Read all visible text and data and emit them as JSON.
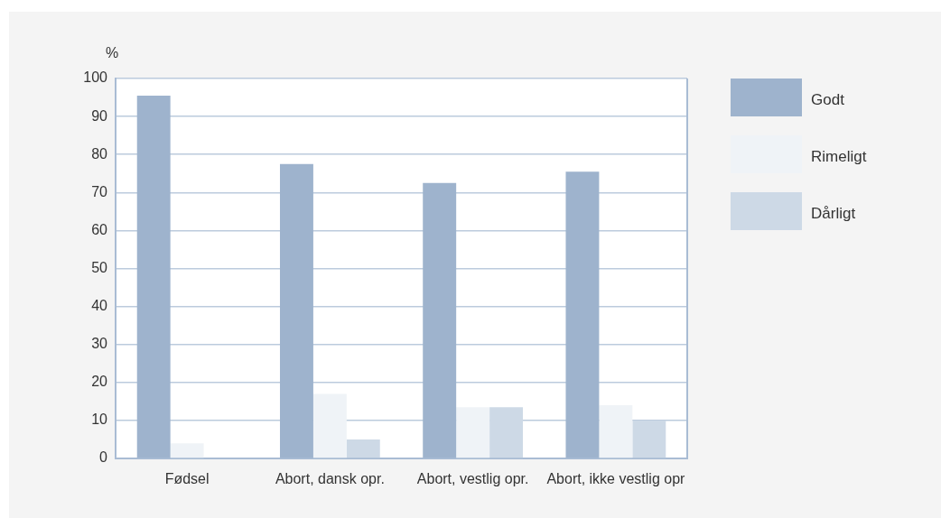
{
  "chart_data": {
    "type": "bar",
    "ylabel": "%",
    "categories": [
      "Fødsel",
      "Abort, dansk opr.",
      "Abort, vestlig opr.",
      "Abort, ikke vestlig opr"
    ],
    "series": [
      {
        "name": "Godt",
        "color": "#9eb3cd",
        "values": [
          95.5,
          77.5,
          72.5,
          75.5
        ]
      },
      {
        "name": "Rimeligt",
        "color": "#eff3f7",
        "values": [
          4,
          17,
          13.5,
          14
        ]
      },
      {
        "name": "Dårligt",
        "color": "#cdd9e6",
        "values": [
          0,
          5,
          13.5,
          10
        ]
      }
    ],
    "ylim": [
      0,
      100
    ],
    "yticks": [
      0,
      10,
      20,
      30,
      40,
      50,
      60,
      70,
      80,
      90,
      100
    ],
    "grid": "y",
    "legend": "right"
  }
}
